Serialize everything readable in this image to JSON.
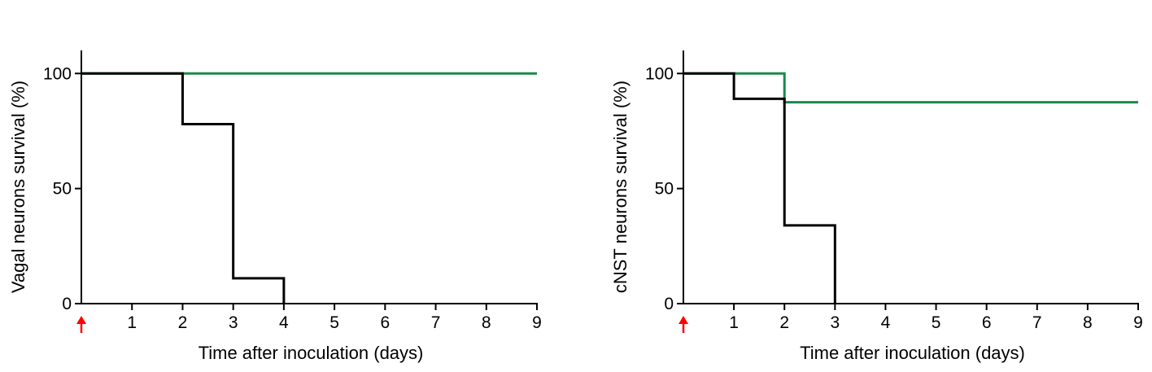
{
  "chart_data": [
    {
      "type": "line",
      "step": true,
      "xlabel": "Time after inoculation (days)",
      "ylabel": "Vagal neurons survival (%)",
      "xlim": [
        0,
        9
      ],
      "ylim": [
        0,
        110
      ],
      "xticks": [
        1,
        2,
        3,
        4,
        5,
        6,
        7,
        8,
        9
      ],
      "yticks": [
        0,
        50,
        100
      ],
      "marker": {
        "type": "arrow",
        "x": 0,
        "color": "#ff0000"
      },
      "grid": false,
      "series": [
        {
          "color": "#1a8a4c",
          "x": [
            0,
            9
          ],
          "y": [
            100,
            100
          ]
        },
        {
          "color": "#000000",
          "x": [
            0,
            2,
            3,
            4
          ],
          "y": [
            100,
            78,
            11,
            0
          ]
        }
      ]
    },
    {
      "type": "line",
      "step": true,
      "xlabel": "Time after inoculation (days)",
      "ylabel": "cNST neurons survival (%)",
      "xlim": [
        0,
        9
      ],
      "ylim": [
        0,
        110
      ],
      "xticks": [
        1,
        2,
        3,
        4,
        5,
        6,
        7,
        8,
        9
      ],
      "yticks": [
        0,
        50,
        100
      ],
      "marker": {
        "type": "arrow",
        "x": 0,
        "color": "#ff0000"
      },
      "grid": false,
      "series": [
        {
          "color": "#1a8a4c",
          "x": [
            0,
            2,
            9
          ],
          "y": [
            100,
            87.5,
            87.5
          ]
        },
        {
          "color": "#000000",
          "x": [
            0,
            1,
            2,
            3
          ],
          "y": [
            100,
            89,
            34,
            0
          ]
        }
      ]
    }
  ]
}
